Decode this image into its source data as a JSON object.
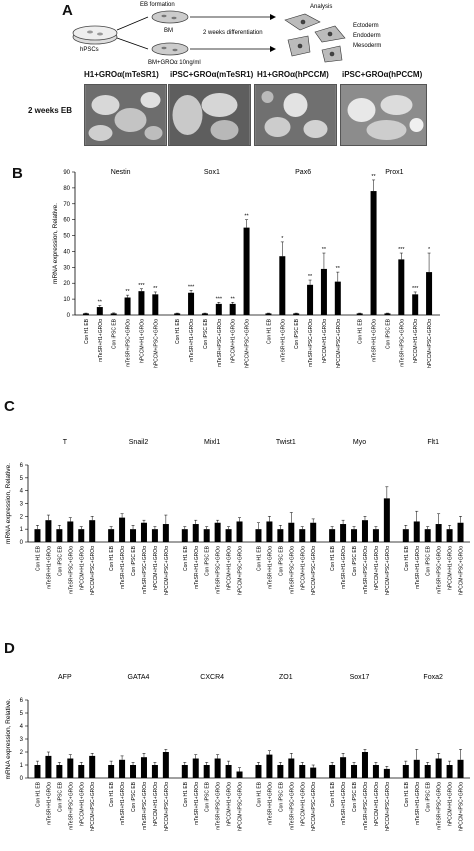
{
  "panel_a": {
    "letter": "A",
    "source_label": "hPSCs",
    "eb_formation": "EB formation",
    "bm_label": "BM",
    "bm_gro_label": "BM+GROα 10ng/ml",
    "differentiation": "2 weeks differentiation",
    "analysis": "Analysis",
    "lineages": [
      "Ectoderm",
      "Endoderm",
      "Mesoderm"
    ],
    "row_label": "2 weeks EB",
    "photo_titles": [
      "H1+GROα(mTeSR1)",
      "iPSC+GROα(mTeSR1)",
      "H1+GROα(hPCCM)",
      "iPSC+GROα(hPCCM)"
    ]
  },
  "chart_data": [
    {
      "type": "bar",
      "panel": "B",
      "ylabel": "mRNA expression, Relative.",
      "ylim": [
        0,
        90
      ],
      "yticks": [
        0,
        10,
        20,
        30,
        40,
        50,
        60,
        70,
        80,
        90
      ],
      "categories": [
        "Con H1 EB",
        "mTeSR+H1+GROα",
        "Con iPSC EB",
        "mTeSR+iPSC+GROα",
        "hPCCM+H1+GROα",
        "hPCCM+iPSC+GROα"
      ],
      "genes": [
        {
          "name": "Nestin",
          "values": [
            1,
            5,
            1,
            11,
            15,
            13
          ],
          "errors": [
            0.2,
            1,
            0.3,
            1.5,
            1.5,
            1.5
          ],
          "sig": [
            "",
            "**",
            "",
            "**",
            "***",
            "**"
          ]
        },
        {
          "name": "Sox1",
          "values": [
            1,
            14,
            1,
            7,
            7,
            55
          ],
          "errors": [
            0.2,
            1.5,
            0.2,
            1,
            1,
            5
          ],
          "sig": [
            "",
            "***",
            "",
            "***",
            "**",
            "**"
          ]
        },
        {
          "name": "Pax6",
          "values": [
            1,
            37,
            1,
            19,
            29,
            21
          ],
          "errors": [
            0.2,
            9,
            0.2,
            3,
            10,
            6
          ],
          "sig": [
            "",
            "*",
            "",
            "**",
            "**",
            "**"
          ]
        },
        {
          "name": "Prox1",
          "values": [
            1,
            78,
            1,
            35,
            13,
            27
          ],
          "errors": [
            0.2,
            7,
            0.2,
            4,
            1.5,
            12
          ],
          "sig": [
            "",
            "**",
            "",
            "***",
            "***",
            "*"
          ]
        }
      ]
    },
    {
      "type": "bar",
      "panel": "C",
      "ylabel": "mRNA expression, Relative.",
      "ylim": [
        0,
        6
      ],
      "yticks": [
        0,
        1,
        2,
        3,
        4,
        5,
        6
      ],
      "categories": [
        "Con H1 EB",
        "mTeSR+H1+GROα",
        "Con iPSC EB",
        "mTeSR+iPSC+GROα",
        "hPCCM+H1+GROα",
        "hPCCM+iPSC+GROα"
      ],
      "genes": [
        {
          "name": "T",
          "values": [
            1,
            1.7,
            1,
            1.6,
            1,
            1.7
          ],
          "errors": [
            0.3,
            0.4,
            0.3,
            0.3,
            0.2,
            0.3
          ]
        },
        {
          "name": "Snail2",
          "values": [
            1,
            1.9,
            1,
            1.5,
            1,
            1.4
          ],
          "errors": [
            0.2,
            0.3,
            0.3,
            0.2,
            0.2,
            0.7
          ]
        },
        {
          "name": "Mixl1",
          "values": [
            1,
            1.4,
            1,
            1.5,
            1,
            1.6
          ],
          "errors": [
            0.2,
            0.3,
            0.2,
            0.2,
            0.2,
            0.3
          ]
        },
        {
          "name": "Twist1",
          "values": [
            1,
            1.6,
            1,
            1.5,
            1,
            1.5
          ],
          "errors": [
            0.5,
            0.4,
            0.3,
            0.8,
            0.2,
            0.3
          ]
        },
        {
          "name": "Myo",
          "values": [
            1,
            1.4,
            1,
            1.7,
            1,
            3.4
          ],
          "errors": [
            0.2,
            0.3,
            0.2,
            0.3,
            0.2,
            0.9
          ]
        },
        {
          "name": "Flt1",
          "values": [
            1,
            1.6,
            1,
            1.4,
            1,
            1.5
          ],
          "errors": [
            0.3,
            0.8,
            0.2,
            0.8,
            0.3,
            0.5
          ]
        }
      ]
    },
    {
      "type": "bar",
      "panel": "D",
      "ylabel": "mRNA expression, Relative.",
      "ylim": [
        0,
        6
      ],
      "yticks": [
        0,
        1,
        2,
        3,
        4,
        5,
        6
      ],
      "categories": [
        "Con H1 EB",
        "mTeSR+H1+GROα",
        "Con iPSC EB",
        "mTeSR+iPSC+GROα",
        "hPCCM+H1+GROα",
        "hPCCM+iPSC+GROα"
      ],
      "genes": [
        {
          "name": "AFP",
          "values": [
            1,
            1.7,
            1,
            1.5,
            1,
            1.7
          ],
          "errors": [
            0.3,
            0.3,
            0.2,
            0.3,
            0.2,
            0.2
          ]
        },
        {
          "name": "GATA4",
          "values": [
            1,
            1.4,
            1,
            1.6,
            1,
            2.0
          ],
          "errors": [
            0.3,
            0.3,
            0.2,
            0.3,
            0.2,
            0.2
          ]
        },
        {
          "name": "CXCR4",
          "values": [
            1,
            1.5,
            1,
            1.5,
            1,
            0.5
          ],
          "errors": [
            0.2,
            0.3,
            0.2,
            0.3,
            0.3,
            0.3
          ]
        },
        {
          "name": "ZO1",
          "values": [
            1,
            1.8,
            1,
            1.5,
            1,
            0.8
          ],
          "errors": [
            0.2,
            0.3,
            0.2,
            0.4,
            0.2,
            0.2
          ]
        },
        {
          "name": "Sox17",
          "values": [
            1,
            1.6,
            1,
            2.0,
            1,
            0.7
          ],
          "errors": [
            0.2,
            0.3,
            0.2,
            0.2,
            0.2,
            0.2
          ]
        },
        {
          "name": "Foxa2",
          "values": [
            1,
            1.4,
            1,
            1.5,
            1,
            1.4
          ],
          "errors": [
            0.3,
            0.8,
            0.2,
            0.4,
            0.3,
            0.8
          ]
        }
      ]
    }
  ]
}
